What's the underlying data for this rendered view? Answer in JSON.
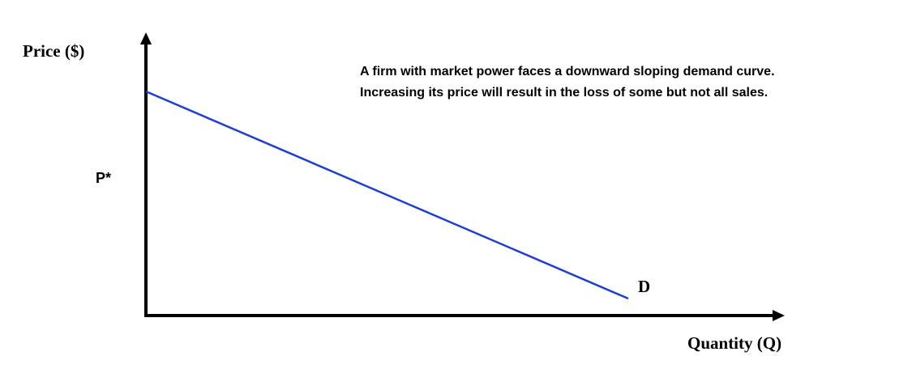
{
  "y_axis_label": "Price ($)",
  "x_axis_label": "Quantity (Q)",
  "price_marker_label": "P*",
  "curve_label": "D",
  "annotation": {
    "line1": "A firm with market power faces a downward sloping demand curve.",
    "line2": "Increasing its price will result in the loss of some but not all sales."
  },
  "colors": {
    "axis": "#000000",
    "demand_curve": "#1f3fcf",
    "text": "#000000"
  }
}
